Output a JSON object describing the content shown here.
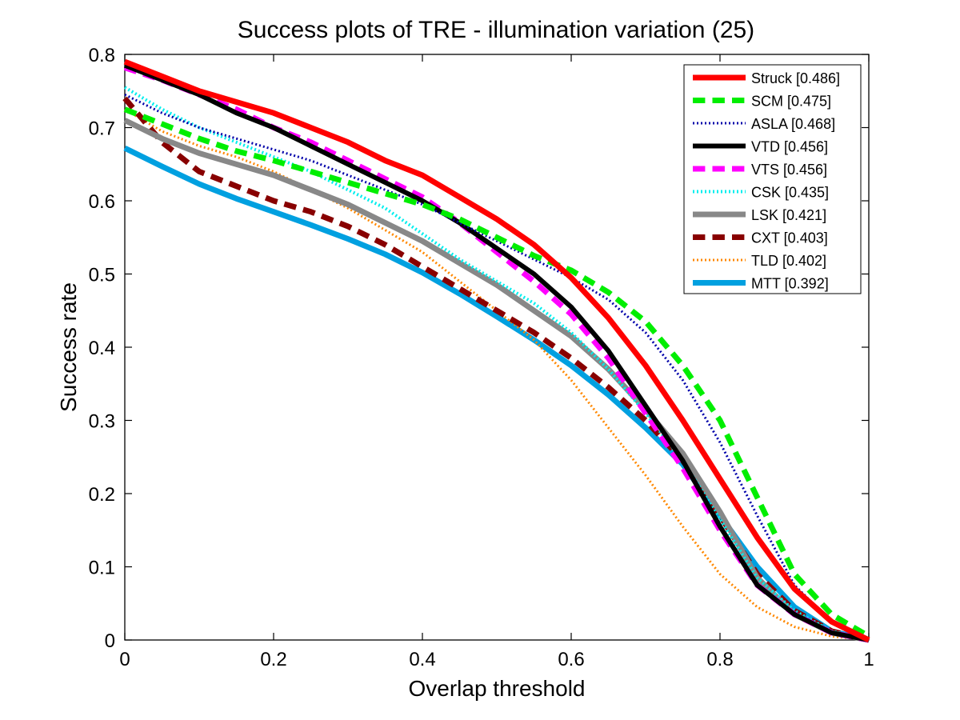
{
  "chart_data": {
    "type": "line",
    "title": "Success plots of TRE - illumination variation (25)",
    "xlabel": "Overlap threshold",
    "ylabel": "Success rate",
    "xlim": [
      0,
      1
    ],
    "ylim": [
      0,
      0.8
    ],
    "xticks": [
      0,
      0.2,
      0.4,
      0.6,
      0.8,
      1
    ],
    "xtick_labels": [
      "0",
      "0.2",
      "0.4",
      "0.6",
      "0.8",
      "1"
    ],
    "yticks": [
      0,
      0.1,
      0.2,
      0.3,
      0.4,
      0.5,
      0.6,
      0.7,
      0.8
    ],
    "ytick_labels": [
      "0",
      "0.1",
      "0.2",
      "0.3",
      "0.4",
      "0.5",
      "0.6",
      "0.7",
      "0.8"
    ],
    "grid": false,
    "legend_position": "top-right",
    "x": [
      0,
      0.05,
      0.1,
      0.15,
      0.2,
      0.25,
      0.3,
      0.35,
      0.4,
      0.45,
      0.5,
      0.55,
      0.6,
      0.65,
      0.7,
      0.75,
      0.8,
      0.85,
      0.9,
      0.95,
      1.0
    ],
    "series": [
      {
        "name": "Struck [0.486]",
        "color": "#ff0000",
        "dash": "solid",
        "width": 7,
        "values": [
          0.79,
          0.77,
          0.75,
          0.735,
          0.72,
          0.7,
          0.68,
          0.655,
          0.635,
          0.605,
          0.575,
          0.54,
          0.495,
          0.44,
          0.375,
          0.3,
          0.22,
          0.14,
          0.07,
          0.025,
          0.0
        ]
      },
      {
        "name": "SCM [0.475]",
        "color": "#00ee00",
        "dash": "dashed",
        "width": 7,
        "values": [
          0.725,
          0.705,
          0.685,
          0.668,
          0.655,
          0.64,
          0.625,
          0.61,
          0.595,
          0.575,
          0.55,
          0.525,
          0.505,
          0.475,
          0.435,
          0.375,
          0.3,
          0.195,
          0.09,
          0.035,
          0.005
        ]
      },
      {
        "name": "ASLA [0.468]",
        "color": "#0000aa",
        "dash": "dotted",
        "width": 3,
        "values": [
          0.745,
          0.72,
          0.7,
          0.685,
          0.67,
          0.655,
          0.635,
          0.615,
          0.595,
          0.57,
          0.545,
          0.52,
          0.495,
          0.465,
          0.42,
          0.355,
          0.27,
          0.17,
          0.075,
          0.025,
          0.0
        ]
      },
      {
        "name": "VTD [0.456]",
        "color": "#000000",
        "dash": "solid",
        "width": 6,
        "values": [
          0.785,
          0.765,
          0.745,
          0.72,
          0.7,
          0.675,
          0.65,
          0.625,
          0.6,
          0.57,
          0.535,
          0.5,
          0.455,
          0.395,
          0.32,
          0.245,
          0.155,
          0.075,
          0.035,
          0.01,
          0.0
        ]
      },
      {
        "name": "VTS [0.456]",
        "color": "#ff00ff",
        "dash": "dashed",
        "width": 7,
        "values": [
          0.782,
          0.765,
          0.745,
          0.725,
          0.7,
          0.68,
          0.655,
          0.63,
          0.605,
          0.57,
          0.53,
          0.49,
          0.445,
          0.385,
          0.31,
          0.235,
          0.15,
          0.075,
          0.035,
          0.01,
          0.0
        ]
      },
      {
        "name": "CSK [0.435]",
        "color": "#00eeee",
        "dash": "dotted",
        "width": 4,
        "values": [
          0.755,
          0.725,
          0.7,
          0.68,
          0.66,
          0.64,
          0.615,
          0.59,
          0.555,
          0.52,
          0.49,
          0.46,
          0.42,
          0.37,
          0.31,
          0.245,
          0.165,
          0.085,
          0.04,
          0.012,
          0.0
        ]
      },
      {
        "name": "LSK [0.421]",
        "color": "#888888",
        "dash": "solid",
        "width": 7,
        "values": [
          0.71,
          0.685,
          0.665,
          0.65,
          0.635,
          0.615,
          0.595,
          0.57,
          0.545,
          0.515,
          0.485,
          0.45,
          0.415,
          0.37,
          0.315,
          0.255,
          0.175,
          0.085,
          0.035,
          0.01,
          0.0
        ]
      },
      {
        "name": "CXT [0.403]",
        "color": "#880000",
        "dash": "dashed",
        "width": 7,
        "values": [
          0.74,
          0.68,
          0.64,
          0.62,
          0.6,
          0.585,
          0.565,
          0.54,
          0.51,
          0.48,
          0.45,
          0.42,
          0.385,
          0.345,
          0.3,
          0.245,
          0.17,
          0.09,
          0.04,
          0.012,
          0.0
        ]
      },
      {
        "name": "TLD [0.402]",
        "color": "#ff8800",
        "dash": "dotted",
        "width": 3,
        "values": [
          0.725,
          0.695,
          0.675,
          0.66,
          0.64,
          0.615,
          0.59,
          0.56,
          0.53,
          0.49,
          0.45,
          0.41,
          0.355,
          0.29,
          0.225,
          0.155,
          0.09,
          0.045,
          0.018,
          0.005,
          0.0
        ]
      },
      {
        "name": "MTT [0.392]",
        "color": "#00a0e0",
        "dash": "solid",
        "width": 7,
        "values": [
          0.672,
          0.647,
          0.623,
          0.603,
          0.585,
          0.567,
          0.548,
          0.527,
          0.502,
          0.473,
          0.442,
          0.41,
          0.375,
          0.335,
          0.29,
          0.24,
          0.17,
          0.1,
          0.045,
          0.012,
          0.0
        ]
      }
    ]
  }
}
